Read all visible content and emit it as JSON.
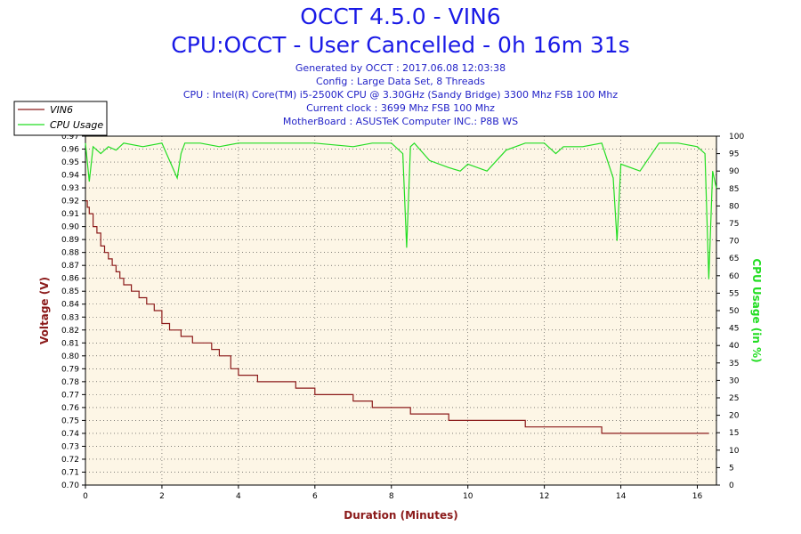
{
  "header": {
    "title": "OCCT 4.5.0 - VIN6",
    "subtitle": "CPU:OCCT - User Cancelled - 0h 16m 31s"
  },
  "info": {
    "generated": "Generated by OCCT : 2017.06.08 12:03:38",
    "config": "Config : Large Data Set, 8 Threads",
    "cpu": "CPU : Intel(R) Core(TM) i5-2500K CPU @ 3.30GHz (Sandy Bridge) 3300 Mhz FSB 100 Mhz",
    "clock": "Current clock : 3699 Mhz FSB 100 Mhz",
    "motherboard": "MotherBoard : ASUSTeK Computer INC.: P8B WS"
  },
  "legend": {
    "vin6": "VIN6",
    "cpu_usage": "CPU Usage"
  },
  "colors": {
    "vin6": "#8b1a1a",
    "cpu_usage": "#22dd22",
    "plot_bg": "#fdf6e6",
    "title": "#1a1ae6"
  },
  "chart_data": {
    "type": "line",
    "xlabel": "Duration (Minutes)",
    "ylabel_left": "Voltage (V)",
    "ylabel_right": "CPU Usage (in %)",
    "xlim": [
      0,
      16.5
    ],
    "ylim_left": [
      0.7,
      0.97
    ],
    "ylim_right": [
      0,
      100
    ],
    "x_ticks": [
      "0",
      "2",
      "4",
      "6",
      "8",
      "10",
      "12",
      "14",
      "16"
    ],
    "y_ticks_left": [
      "0.70",
      "0.71",
      "0.72",
      "0.73",
      "0.74",
      "0.75",
      "0.76",
      "0.77",
      "0.78",
      "0.79",
      "0.80",
      "0.81",
      "0.82",
      "0.83",
      "0.84",
      "0.85",
      "0.86",
      "0.87",
      "0.88",
      "0.89",
      "0.90",
      "0.91",
      "0.92",
      "0.93",
      "0.94",
      "0.95",
      "0.96",
      "0.97"
    ],
    "y_ticks_right": [
      "0",
      "5",
      "10",
      "15",
      "20",
      "25",
      "30",
      "35",
      "40",
      "45",
      "50",
      "55",
      "60",
      "65",
      "70",
      "75",
      "80",
      "85",
      "90",
      "95",
      "100"
    ],
    "grid": true,
    "legend_position": "top-left",
    "series": [
      {
        "name": "VIN6",
        "axis": "left",
        "x": [
          0,
          0.05,
          0.1,
          0.2,
          0.3,
          0.4,
          0.5,
          0.6,
          0.7,
          0.8,
          0.9,
          1.0,
          1.2,
          1.4,
          1.6,
          1.8,
          2.0,
          2.2,
          2.5,
          2.8,
          3.0,
          3.3,
          3.5,
          3.8,
          4.0,
          4.5,
          5.0,
          5.5,
          6.0,
          6.5,
          7.0,
          7.5,
          8.0,
          8.5,
          9.0,
          9.5,
          10.0,
          10.5,
          11.0,
          11.5,
          12.0,
          12.5,
          13.0,
          13.5,
          14.0,
          14.5,
          15.0,
          15.5,
          16.0,
          16.3
        ],
        "values": [
          0.92,
          0.915,
          0.91,
          0.9,
          0.895,
          0.885,
          0.88,
          0.875,
          0.87,
          0.865,
          0.86,
          0.855,
          0.85,
          0.845,
          0.84,
          0.835,
          0.825,
          0.82,
          0.815,
          0.81,
          0.81,
          0.805,
          0.8,
          0.79,
          0.785,
          0.78,
          0.78,
          0.775,
          0.77,
          0.77,
          0.765,
          0.76,
          0.76,
          0.755,
          0.755,
          0.75,
          0.75,
          0.75,
          0.75,
          0.745,
          0.745,
          0.745,
          0.745,
          0.74,
          0.74,
          0.74,
          0.74,
          0.74,
          0.74,
          0.74
        ]
      },
      {
        "name": "CPU Usage",
        "axis": "right",
        "x": [
          0,
          0.1,
          0.2,
          0.4,
          0.6,
          0.8,
          1.0,
          1.5,
          2.0,
          2.4,
          2.5,
          2.6,
          3.0,
          3.5,
          4.0,
          5.0,
          5.5,
          6.0,
          7.0,
          7.5,
          8.0,
          8.3,
          8.4,
          8.5,
          8.6,
          9.0,
          9.5,
          9.8,
          10.0,
          10.5,
          11.0,
          11.5,
          12.0,
          12.3,
          12.5,
          13.0,
          13.5,
          13.8,
          13.9,
          14.0,
          14.5,
          15.0,
          15.5,
          16.0,
          16.2,
          16.3,
          16.4,
          16.5
        ],
        "values": [
          98,
          87,
          97,
          95,
          97,
          96,
          98,
          97,
          98,
          88,
          95,
          98,
          98,
          97,
          98,
          98,
          98,
          98,
          97,
          98,
          98,
          95,
          68,
          97,
          98,
          93,
          91,
          90,
          92,
          90,
          96,
          98,
          98,
          95,
          97,
          97,
          98,
          88,
          70,
          92,
          90,
          98,
          98,
          97,
          95,
          59,
          90,
          85
        ]
      }
    ]
  }
}
